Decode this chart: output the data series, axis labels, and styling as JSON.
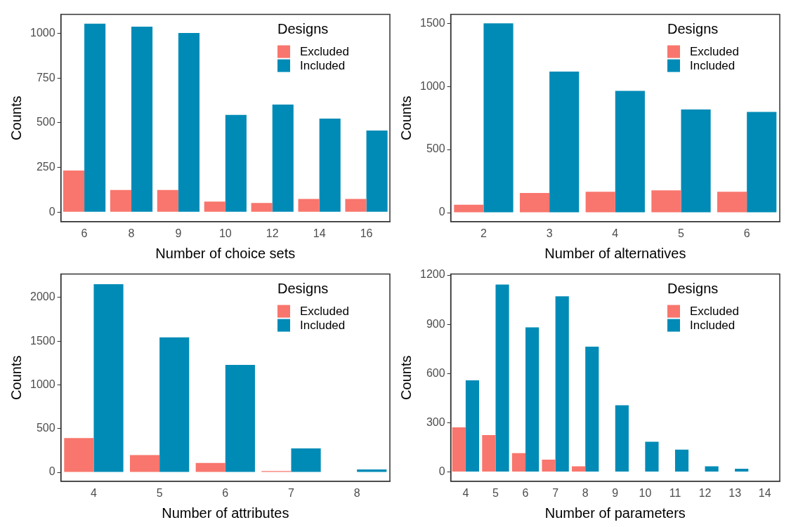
{
  "chart_data": [
    {
      "type": "bar",
      "xlabel": "Number of choice sets",
      "ylabel": "Counts",
      "legend_title": "Designs",
      "categories": [
        "6",
        "8",
        "9",
        "10",
        "12",
        "14",
        "16"
      ],
      "series": [
        {
          "name": "Excluded",
          "color": "#f8766d",
          "values": [
            233,
            124,
            124,
            59,
            51,
            74,
            74
          ]
        },
        {
          "name": "Included",
          "color": "#008bb7",
          "values": [
            1054,
            1038,
            1002,
            544,
            602,
            523,
            457
          ]
        }
      ],
      "ylim": [
        -53,
        1106
      ],
      "yticks": [
        0,
        250,
        500,
        750,
        1000
      ],
      "grid": false,
      "legend": "top right"
    },
    {
      "type": "bar",
      "xlabel": "Number of alternatives",
      "ylabel": "Counts",
      "legend_title": "Designs",
      "categories": [
        "2",
        "3",
        "4",
        "5",
        "6"
      ],
      "series": [
        {
          "name": "Excluded",
          "color": "#f8766d",
          "values": [
            63,
            156,
            166,
            177,
            166
          ]
        },
        {
          "name": "Included",
          "color": "#008bb7",
          "values": [
            1500,
            1118,
            964,
            817,
            798
          ]
        }
      ],
      "ylim": [
        -71,
        1570
      ],
      "yticks": [
        0,
        500,
        1000,
        1500
      ],
      "grid": false,
      "legend": "top right"
    },
    {
      "type": "bar",
      "xlabel": "Number of attributes",
      "ylabel": "Counts",
      "legend_title": "Designs",
      "categories": [
        "4",
        "5",
        "6",
        "7",
        "8"
      ],
      "series": [
        {
          "name": "Excluded",
          "color": "#f8766d",
          "values": [
            391,
            198,
            107,
            14,
            0
          ]
        },
        {
          "name": "Included",
          "color": "#008bb7",
          "values": [
            2152,
            1543,
            1229,
            273,
            33
          ]
        }
      ],
      "ylim": [
        -102,
        2267
      ],
      "yticks": [
        0,
        500,
        1000,
        1500,
        2000
      ],
      "grid": false,
      "legend": "top right"
    },
    {
      "type": "bar",
      "xlabel": "Number of parameters",
      "ylabel": "Counts",
      "legend_title": "Designs",
      "categories": [
        "4",
        "5",
        "6",
        "7",
        "8",
        "9",
        "10",
        "11",
        "12",
        "13",
        "14"
      ],
      "series": [
        {
          "name": "Excluded",
          "color": "#f8766d",
          "values": [
            272,
            224,
            114,
            75,
            34,
            0,
            0,
            null,
            null,
            null,
            null
          ]
        },
        {
          "name": "Included",
          "color": "#008bb7",
          "values": [
            558,
            1142,
            881,
            1071,
            764,
            406,
            184,
            136,
            34,
            19,
            null
          ]
        }
      ],
      "ylim": [
        -57,
        1206
      ],
      "yticks": [
        0,
        300,
        600,
        900,
        1200
      ],
      "grid": false,
      "legend": "top right"
    }
  ]
}
